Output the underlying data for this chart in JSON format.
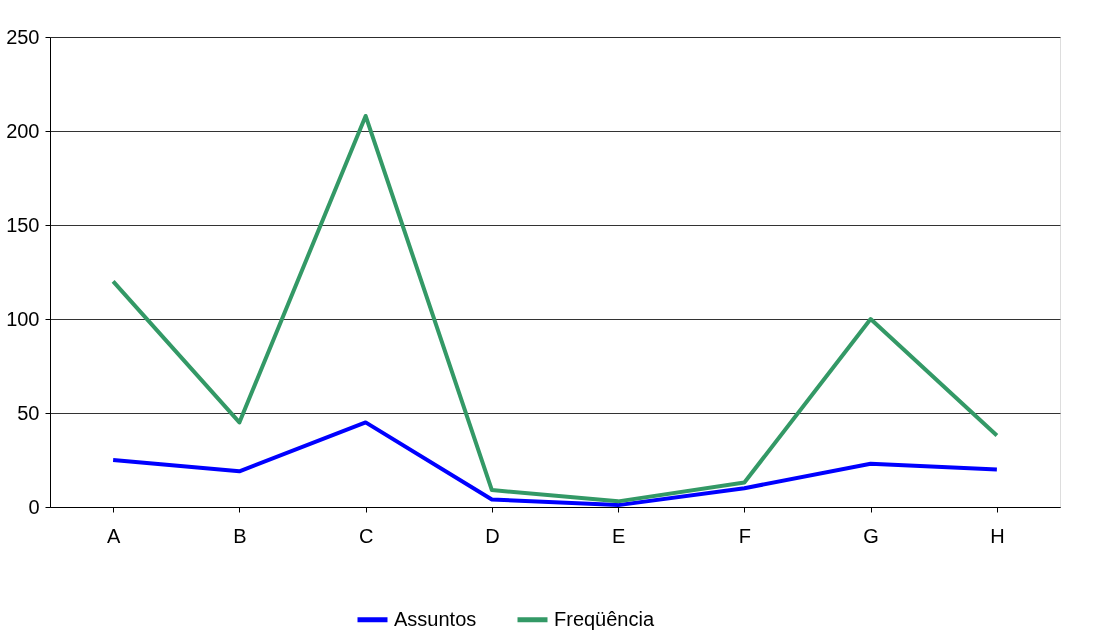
{
  "chart_data": {
    "type": "line",
    "categories": [
      "A",
      "B",
      "C",
      "D",
      "E",
      "F",
      "G",
      "H"
    ],
    "series": [
      {
        "name": "Assuntos",
        "color": "#0000ff",
        "values": [
          25,
          19,
          45,
          4,
          1,
          10,
          23,
          20
        ]
      },
      {
        "name": "Freqüência",
        "color": "#339966",
        "values": [
          120,
          45,
          208,
          9,
          3,
          13,
          100,
          38
        ]
      }
    ],
    "ylim": [
      0,
      250
    ],
    "yticks": [
      0,
      50,
      100,
      150,
      200,
      250
    ],
    "grid": "y",
    "legend": "bottom",
    "marker": "none",
    "line_style": "solid"
  }
}
